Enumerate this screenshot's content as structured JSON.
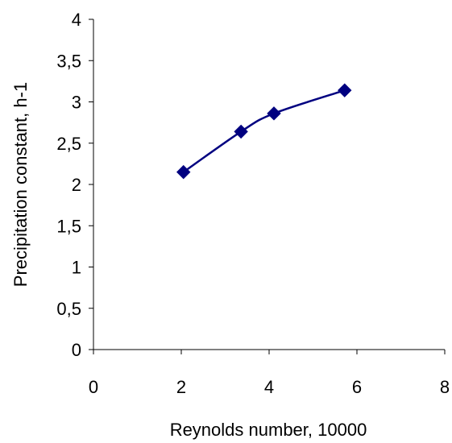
{
  "chart_data": {
    "type": "line",
    "title": "",
    "xlabel": "Reynolds number, 10000",
    "ylabel": "Precipitation constant, h-1",
    "xlim": [
      0,
      8
    ],
    "ylim": [
      0,
      4
    ],
    "x_ticks": [
      0,
      2,
      4,
      6,
      8
    ],
    "x_tick_labels": [
      "0",
      "2",
      "4",
      "6",
      "8"
    ],
    "y_ticks": [
      0,
      0.5,
      1,
      1.5,
      2,
      2.5,
      3,
      3.5,
      4
    ],
    "y_tick_labels": [
      "0",
      "0,5",
      "1",
      "1,5",
      "2",
      "2,5",
      "3",
      "3,5",
      "4"
    ],
    "grid": false,
    "legend": "none",
    "series": [
      {
        "x": [
          2.05,
          3.36,
          4.11,
          5.72
        ],
        "y": [
          2.15,
          2.64,
          2.86,
          3.14
        ],
        "color": "#000080",
        "marker": "diamond",
        "smooth": true
      }
    ]
  }
}
